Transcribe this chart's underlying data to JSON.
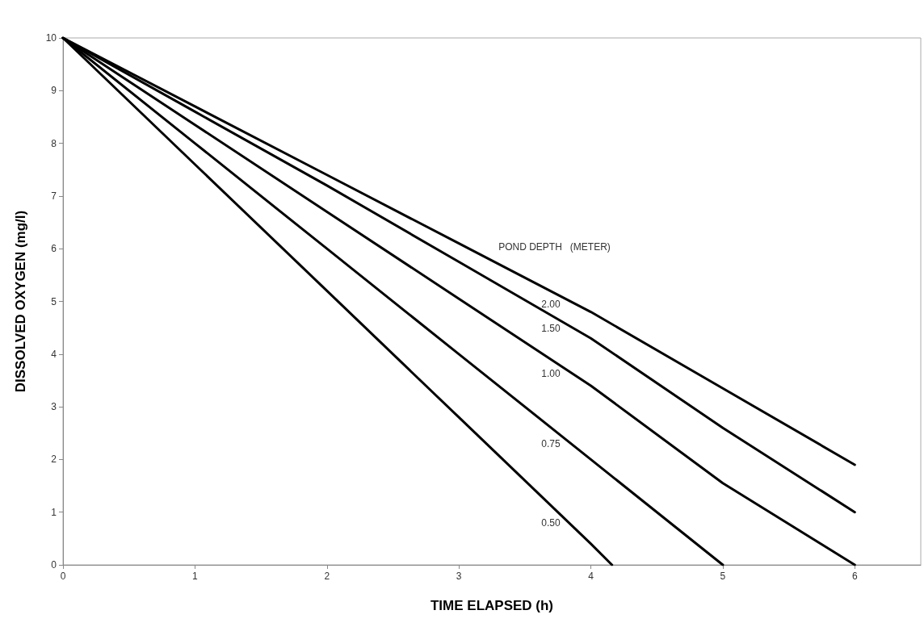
{
  "chart_data": {
    "type": "line",
    "xlabel": "TIME ELAPSED (h)",
    "ylabel": "DISSOLVED OXYGEN (mg/l)",
    "legend_title": "POND DEPTH   (METER)",
    "xlim": [
      0,
      6.5
    ],
    "xticks": [
      0,
      1,
      2,
      3,
      4,
      5,
      6
    ],
    "ylim": [
      0,
      10
    ],
    "yticks": [
      0,
      1,
      2,
      3,
      4,
      5,
      6,
      7,
      8,
      9,
      10
    ],
    "grid": false,
    "legend": false,
    "marker": "none",
    "line_style": "solid",
    "series": [
      {
        "name": "2.00",
        "color": "#000000",
        "x": [
          0,
          1,
          2,
          3,
          4,
          5,
          6
        ],
        "values": [
          10,
          8.7,
          7.4,
          6.1,
          4.8,
          3.35,
          1.9
        ]
      },
      {
        "name": "1.50",
        "color": "#000000",
        "x": [
          0,
          1,
          2,
          3,
          4,
          5,
          6
        ],
        "values": [
          10,
          8.6,
          7.2,
          5.75,
          4.3,
          2.6,
          1.0
        ]
      },
      {
        "name": "1.00",
        "color": "#000000",
        "x": [
          0,
          1,
          2,
          3,
          4,
          5,
          6
        ],
        "values": [
          10,
          8.35,
          6.7,
          5.05,
          3.4,
          1.55,
          0
        ]
      },
      {
        "name": "0.75",
        "color": "#000000",
        "x": [
          0,
          1,
          2,
          3,
          4,
          5
        ],
        "values": [
          10,
          8,
          6,
          4,
          2,
          0
        ]
      },
      {
        "name": "0.50",
        "color": "#000000",
        "x": [
          0,
          1,
          2,
          3,
          4,
          4.16
        ],
        "values": [
          10,
          7.6,
          5.2,
          2.8,
          0.4,
          0
        ]
      }
    ]
  }
}
